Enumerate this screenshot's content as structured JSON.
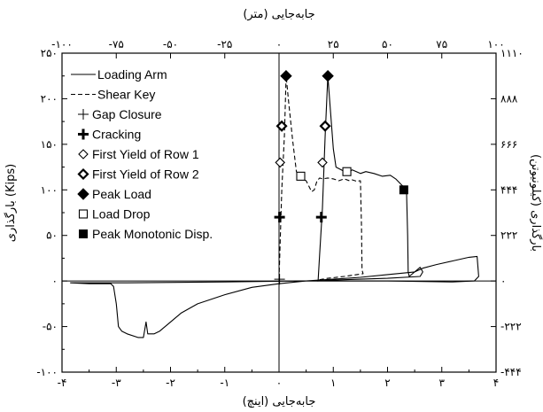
{
  "chart_data": {
    "type": "line",
    "x_bottom": {
      "label": "جابه‌جایی (اینچ)",
      "range": [
        -4,
        4
      ],
      "ticks": [
        -4,
        -3,
        -2,
        -1,
        0,
        1,
        2,
        3,
        4
      ],
      "tick_labels": [
        "-۴",
        "-۳",
        "-۲",
        "-۱",
        "۰",
        "۱",
        "۲",
        "۳",
        "۴"
      ]
    },
    "x_top": {
      "label": "جابه‌جایی (متر)",
      "range": [
        -100,
        100
      ],
      "ticks": [
        -100,
        -75,
        -50,
        -25,
        0,
        25,
        50,
        75,
        100
      ],
      "tick_labels": [
        "-۱۰۰",
        "-۷۵",
        "-۵۰",
        "-۲۵",
        "۰",
        "۲۵",
        "۵۰",
        "۷۵",
        "۱۰۰"
      ]
    },
    "y_left": {
      "label": "بارگذاری (Kips)",
      "range": [
        -100,
        250
      ],
      "ticks": [
        -100,
        -50,
        0,
        50,
        100,
        150,
        200,
        250
      ],
      "tick_labels": [
        "-۱۰۰",
        "-۵۰",
        "۰",
        "۵۰",
        "۱۰۰",
        "۱۵۰",
        "۲۰۰",
        "۲۵۰"
      ]
    },
    "y_right": {
      "label": "بارگذاری (کیلونیوتن)",
      "ticks": [
        -444,
        -222,
        0,
        222,
        444,
        666,
        888,
        1110
      ],
      "tick_labels": [
        "-۴۴۴",
        "-۲۲۲",
        "۰",
        "۲۲۲",
        "۴۴۴",
        "۶۶۶",
        "۸۸۸",
        "۱۱۱۰"
      ]
    },
    "grid": false,
    "legend_position": "top-left",
    "legend": [
      {
        "label": "Loading Arm",
        "symbol": "solid-line"
      },
      {
        "label": "Shear Key",
        "symbol": "dashed-line"
      },
      {
        "label": "Gap Closure",
        "symbol": "thin-plus"
      },
      {
        "label": "Cracking",
        "symbol": "bold-plus"
      },
      {
        "label": "First Yield of Row 1",
        "symbol": "open-diamond"
      },
      {
        "label": "First Yield of Row 2",
        "symbol": "bold-open-diamond"
      },
      {
        "label": "Peak Load",
        "symbol": "filled-diamond"
      },
      {
        "label": "Load Drop",
        "symbol": "open-square"
      },
      {
        "label": "Peak Monotonic Disp.",
        "symbol": "filled-square"
      }
    ],
    "series": [
      {
        "name": "Loading Arm",
        "style": "solid",
        "points": [
          [
            -3.85,
            -2
          ],
          [
            -3.5,
            -3
          ],
          [
            -3.1,
            -3
          ],
          [
            -3.05,
            -6
          ],
          [
            -3.0,
            -25
          ],
          [
            -2.96,
            -50
          ],
          [
            -2.9,
            -55
          ],
          [
            -2.8,
            -58
          ],
          [
            -2.6,
            -62
          ],
          [
            -2.5,
            -62
          ],
          [
            -2.45,
            -45
          ],
          [
            -2.42,
            -58
          ],
          [
            -2.3,
            -58
          ],
          [
            -2.2,
            -55
          ],
          [
            -2.0,
            -45
          ],
          [
            -1.8,
            -35
          ],
          [
            -1.5,
            -25
          ],
          [
            -1.0,
            -15
          ],
          [
            -0.5,
            -7
          ],
          [
            0,
            -3
          ],
          [
            0.5,
            0
          ],
          [
            1.0,
            2
          ],
          [
            1.5,
            4
          ],
          [
            2.0,
            7
          ],
          [
            2.5,
            10
          ],
          [
            2.65,
            14
          ],
          [
            2.9,
            18
          ],
          [
            3.2,
            22
          ],
          [
            3.5,
            26
          ],
          [
            3.65,
            27
          ],
          [
            3.68,
            5
          ],
          [
            3.6,
            0
          ],
          [
            3.2,
            -1
          ],
          [
            2.0,
            0
          ],
          [
            1.0,
            0
          ],
          [
            0.4,
            0
          ],
          [
            -1.0,
            -1
          ],
          [
            -2.8,
            -2
          ],
          [
            -3.85,
            -2
          ]
        ]
      },
      {
        "name": "Loading Arm",
        "style": "solid",
        "points": [
          [
            0.72,
            0
          ],
          [
            0.75,
            30
          ],
          [
            0.8,
            80
          ],
          [
            0.85,
            160
          ],
          [
            0.9,
            225
          ],
          [
            0.95,
            185
          ],
          [
            1.0,
            145
          ],
          [
            1.05,
            125
          ],
          [
            1.15,
            122
          ],
          [
            1.25,
            118
          ],
          [
            1.35,
            122
          ],
          [
            1.5,
            118
          ],
          [
            1.6,
            120
          ],
          [
            1.75,
            118
          ],
          [
            1.9,
            115
          ],
          [
            2.05,
            116
          ],
          [
            2.15,
            112
          ],
          [
            2.3,
            103
          ],
          [
            2.35,
            100
          ],
          [
            2.37,
            50
          ],
          [
            2.38,
            10
          ],
          [
            2.4,
            5
          ],
          [
            2.6,
            15
          ],
          [
            2.65,
            10
          ],
          [
            2.6,
            5
          ],
          [
            2.0,
            3
          ],
          [
            1.5,
            2
          ],
          [
            1.0,
            1
          ],
          [
            0.7,
            0
          ]
        ]
      },
      {
        "name": "Shear Key",
        "style": "dashed",
        "points": [
          [
            0,
            2
          ],
          [
            0.05,
            100
          ],
          [
            0.1,
            160
          ],
          [
            0.13,
            225
          ],
          [
            0.18,
            195
          ],
          [
            0.25,
            155
          ],
          [
            0.32,
            120
          ],
          [
            0.4,
            113
          ],
          [
            0.5,
            110
          ],
          [
            0.6,
            98
          ],
          [
            0.65,
            100
          ],
          [
            0.7,
            110
          ],
          [
            0.75,
            113
          ],
          [
            0.8,
            112
          ],
          [
            0.9,
            113
          ],
          [
            1.0,
            112
          ],
          [
            1.1,
            110
          ],
          [
            1.2,
            112
          ],
          [
            1.3,
            110
          ],
          [
            1.35,
            111
          ],
          [
            1.4,
            110
          ],
          [
            1.45,
            109
          ],
          [
            1.48,
            110
          ],
          [
            1.5,
            110
          ],
          [
            1.52,
            60
          ],
          [
            1.53,
            12
          ],
          [
            1.55,
            8
          ],
          [
            1.2,
            5
          ],
          [
            0.9,
            3
          ],
          [
            0.7,
            1
          ]
        ]
      }
    ],
    "markers": [
      {
        "label": "Gap Closure",
        "symbol": "thin-plus",
        "points": [
          [
            0.01,
            2
          ]
        ]
      },
      {
        "label": "Cracking",
        "symbol": "bold-plus",
        "points": [
          [
            0.01,
            70
          ],
          [
            0.78,
            70
          ]
        ]
      },
      {
        "label": "First Yield of Row 1",
        "symbol": "open-diamond",
        "points": [
          [
            0.02,
            130
          ],
          [
            0.8,
            130
          ]
        ]
      },
      {
        "label": "First Yield of Row 2",
        "symbol": "bold-open-diamond",
        "points": [
          [
            0.05,
            170
          ],
          [
            0.85,
            170
          ]
        ]
      },
      {
        "label": "Peak Load",
        "symbol": "filled-diamond",
        "points": [
          [
            0.13,
            225
          ],
          [
            0.9,
            225
          ]
        ]
      },
      {
        "label": "Load Drop",
        "symbol": "open-square",
        "points": [
          [
            0.4,
            115
          ],
          [
            1.25,
            120
          ]
        ]
      },
      {
        "label": "Peak Monotonic Disp.",
        "symbol": "filled-square",
        "points": [
          [
            2.3,
            100
          ]
        ]
      }
    ]
  }
}
